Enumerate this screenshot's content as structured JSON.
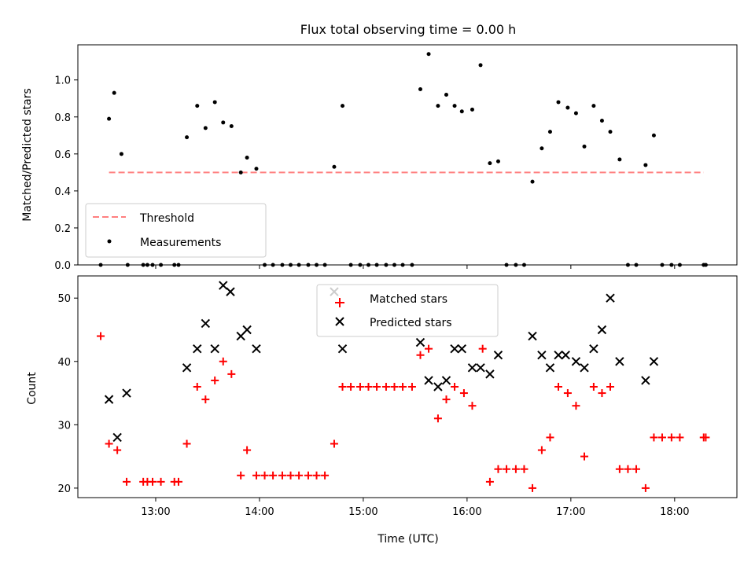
{
  "chart_data": [
    {
      "type": "scatter",
      "title": "Flux total observing time = 0.00 h",
      "xlabel": "",
      "ylabel": "Matched/Predicted stars",
      "xlim": [
        12.25,
        18.6
      ],
      "ylim": [
        0.0,
        1.19
      ],
      "yticks": [
        0.0,
        0.2,
        0.4,
        0.6,
        0.8,
        1.0
      ],
      "yticklabels": [
        "0.0",
        "0.2",
        "0.4",
        "0.6",
        "0.8",
        "1.0"
      ],
      "xticks": [
        13,
        14,
        15,
        16,
        17,
        18
      ],
      "threshold": {
        "name": "Threshold",
        "value": 0.5,
        "x": [
          12.55,
          18.28
        ],
        "color": "#ff7f7f"
      },
      "series": [
        {
          "name": "Measurements",
          "color": "#000000",
          "x": [
            12.55,
            12.6,
            12.67,
            12.73,
            13.3,
            13.4,
            13.48,
            13.57,
            13.65,
            13.73,
            13.82,
            13.88,
            13.97,
            14.72,
            14.8,
            15.55,
            15.63,
            15.72,
            15.8,
            15.88,
            15.95,
            16.05,
            16.13,
            16.22,
            16.3,
            16.63,
            16.72,
            16.8,
            16.88,
            16.97,
            17.05,
            17.13,
            17.22,
            17.3,
            17.38,
            17.47,
            17.72,
            17.8,
            12.47,
            12.88,
            12.92,
            12.97,
            13.05,
            13.18,
            13.22,
            14.05,
            14.13,
            14.22,
            14.3,
            14.38,
            14.47,
            14.55,
            14.63,
            14.88,
            14.97,
            15.05,
            15.13,
            15.22,
            15.3,
            15.38,
            15.47,
            16.38,
            16.47,
            16.55,
            17.55,
            17.63,
            17.88,
            17.97,
            18.05,
            18.28,
            18.3
          ],
          "y": [
            0.79,
            0.93,
            0.6,
            0.0,
            0.69,
            0.86,
            0.74,
            0.88,
            0.77,
            0.75,
            0.5,
            0.58,
            0.52,
            0.53,
            0.86,
            0.95,
            1.14,
            0.86,
            0.92,
            0.86,
            0.83,
            0.84,
            1.08,
            0.55,
            0.56,
            0.45,
            0.63,
            0.72,
            0.88,
            0.85,
            0.82,
            0.64,
            0.86,
            0.78,
            0.72,
            0.57,
            0.54,
            0.7,
            0.0,
            0.0,
            0.0,
            0.0,
            0.0,
            0.0,
            0.0,
            0.0,
            0.0,
            0.0,
            0.0,
            0.0,
            0.0,
            0.0,
            0.0,
            0.0,
            0.0,
            0.0,
            0.0,
            0.0,
            0.0,
            0.0,
            0.0,
            0.0,
            0.0,
            0.0,
            0.0,
            0.0,
            0.0,
            0.0,
            0.0,
            0.0,
            0.0
          ]
        }
      ],
      "legend": [
        "Threshold",
        "Measurements"
      ],
      "legend_loc": "lower-left"
    },
    {
      "type": "scatter",
      "title": "",
      "xlabel": "Time (UTC)",
      "ylabel": "Count",
      "xlim": [
        12.25,
        18.6
      ],
      "ylim": [
        18.5,
        53.5
      ],
      "yticks": [
        20,
        30,
        40,
        50
      ],
      "yticklabels": [
        "20",
        "30",
        "40",
        "50"
      ],
      "xticks": [
        13,
        14,
        15,
        16,
        17,
        18
      ],
      "xticklabels": [
        "13:00",
        "14:00",
        "15:00",
        "16:00",
        "17:00",
        "18:00"
      ],
      "series": [
        {
          "name": "Matched stars",
          "color": "#ff0000",
          "marker": "+",
          "x": [
            12.47,
            12.55,
            12.63,
            12.72,
            12.88,
            12.92,
            12.97,
            13.05,
            13.18,
            13.22,
            13.3,
            13.4,
            13.48,
            13.57,
            13.65,
            13.73,
            13.82,
            13.88,
            13.97,
            14.05,
            14.13,
            14.22,
            14.3,
            14.38,
            14.47,
            14.55,
            14.63,
            14.72,
            14.8,
            14.88,
            14.97,
            15.05,
            15.13,
            15.22,
            15.3,
            15.38,
            15.47,
            15.55,
            15.63,
            15.72,
            15.8,
            15.88,
            15.97,
            16.05,
            16.15,
            16.22,
            16.3,
            16.38,
            16.47,
            16.55,
            16.63,
            16.72,
            16.8,
            16.88,
            16.97,
            17.05,
            17.13,
            17.22,
            17.3,
            17.38,
            17.47,
            17.55,
            17.63,
            17.72,
            17.8,
            17.88,
            17.97,
            18.05,
            18.28,
            18.3
          ],
          "y": [
            44,
            27,
            26,
            21,
            21,
            21,
            21,
            21,
            21,
            21,
            27,
            36,
            34,
            37,
            40,
            38,
            22,
            26,
            22,
            22,
            22,
            22,
            22,
            22,
            22,
            22,
            22,
            27,
            36,
            36,
            36,
            36,
            36,
            36,
            36,
            36,
            36,
            41,
            42,
            31,
            34,
            36,
            35,
            33,
            42,
            21,
            23,
            23,
            23,
            23,
            20,
            26,
            28,
            36,
            35,
            33,
            25,
            36,
            35,
            36,
            23,
            23,
            23,
            20,
            28,
            28,
            28,
            28,
            28,
            28
          ]
        },
        {
          "name": "Predicted stars",
          "color": "#000000",
          "marker": "x",
          "x": [
            12.55,
            12.63,
            12.72,
            13.3,
            13.4,
            13.48,
            13.57,
            13.65,
            13.72,
            13.82,
            13.88,
            13.97,
            14.72,
            14.8,
            15.55,
            15.63,
            15.72,
            15.8,
            15.88,
            15.95,
            16.05,
            16.13,
            16.22,
            16.3,
            16.63,
            16.72,
            16.8,
            16.88,
            16.95,
            17.05,
            17.13,
            17.22,
            17.3,
            17.38,
            17.47,
            17.72,
            17.8
          ],
          "y": [
            34,
            28,
            35,
            39,
            42,
            46,
            42,
            52,
            51,
            44,
            45,
            42,
            51,
            42,
            43,
            37,
            36,
            37,
            42,
            42,
            39,
            39,
            38,
            41,
            44,
            41,
            39,
            41,
            41,
            40,
            39,
            42,
            45,
            50,
            40,
            37,
            40
          ]
        }
      ],
      "legend": [
        "Matched stars",
        "Predicted stars"
      ],
      "legend_loc": "upper-center"
    }
  ]
}
